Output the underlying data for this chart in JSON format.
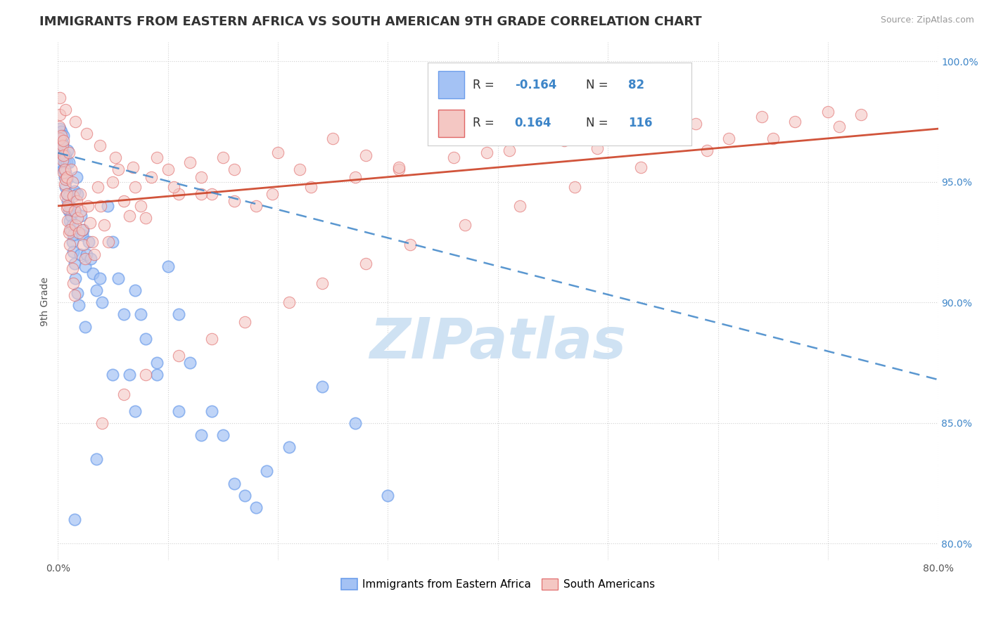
{
  "title": "IMMIGRANTS FROM EASTERN AFRICA VS SOUTH AMERICAN 9TH GRADE CORRELATION CHART",
  "source": "Source: ZipAtlas.com",
  "ylabel": "9th Grade",
  "xlim": [
    0.0,
    0.8
  ],
  "ylim": [
    0.793,
    1.008
  ],
  "xticks": [
    0.0,
    0.1,
    0.2,
    0.3,
    0.4,
    0.5,
    0.6,
    0.7,
    0.8
  ],
  "xticklabels": [
    "0.0%",
    "",
    "",
    "",
    "",
    "",
    "",
    "",
    "80.0%"
  ],
  "yticks": [
    0.8,
    0.85,
    0.9,
    0.95,
    1.0
  ],
  "yticklabels": [
    "80.0%",
    "85.0%",
    "90.0%",
    "95.0%",
    "100.0%"
  ],
  "blue_R": -0.164,
  "blue_N": 82,
  "pink_R": 0.164,
  "pink_N": 116,
  "blue_color": "#a4c2f4",
  "pink_color": "#f4c7c3",
  "blue_edge_color": "#6d9eeb",
  "pink_edge_color": "#e06666",
  "blue_line_color": "#3d85c8",
  "pink_line_color": "#cc4125",
  "watermark": "ZIPatlas",
  "watermark_color": "#cfe2f3",
  "legend_label_blue": "Immigrants from Eastern Africa",
  "legend_label_pink": "South Americans",
  "title_fontsize": 13,
  "axis_label_fontsize": 10,
  "tick_fontsize": 10,
  "legend_fontsize": 11,
  "blue_trend_x0": 0.0,
  "blue_trend_x1": 0.8,
  "blue_trend_y0": 0.962,
  "blue_trend_y1": 0.868,
  "pink_trend_x0": 0.0,
  "pink_trend_x1": 0.8,
  "pink_trend_y0": 0.94,
  "pink_trend_y1": 0.972,
  "blue_scatter_x": [
    0.001,
    0.002,
    0.002,
    0.003,
    0.003,
    0.003,
    0.004,
    0.004,
    0.005,
    0.005,
    0.005,
    0.006,
    0.006,
    0.007,
    0.007,
    0.007,
    0.008,
    0.008,
    0.008,
    0.009,
    0.009,
    0.01,
    0.01,
    0.01,
    0.011,
    0.011,
    0.012,
    0.012,
    0.013,
    0.013,
    0.014,
    0.014,
    0.015,
    0.015,
    0.016,
    0.016,
    0.017,
    0.018,
    0.018,
    0.019,
    0.02,
    0.021,
    0.022,
    0.023,
    0.025,
    0.026,
    0.028,
    0.03,
    0.032,
    0.035,
    0.038,
    0.04,
    0.045,
    0.05,
    0.055,
    0.06,
    0.065,
    0.07,
    0.075,
    0.08,
    0.09,
    0.1,
    0.11,
    0.12,
    0.14,
    0.15,
    0.17,
    0.19,
    0.21,
    0.24,
    0.27,
    0.3,
    0.09,
    0.11,
    0.13,
    0.16,
    0.18,
    0.05,
    0.07,
    0.035,
    0.025,
    0.015
  ],
  "blue_scatter_y": [
    0.968,
    0.963,
    0.972,
    0.958,
    0.965,
    0.971,
    0.96,
    0.966,
    0.955,
    0.962,
    0.969,
    0.952,
    0.958,
    0.948,
    0.954,
    0.961,
    0.945,
    0.951,
    0.958,
    0.942,
    0.963,
    0.938,
    0.944,
    0.958,
    0.934,
    0.94,
    0.93,
    0.936,
    0.925,
    0.932,
    0.921,
    0.928,
    0.916,
    0.946,
    0.91,
    0.938,
    0.952,
    0.904,
    0.945,
    0.899,
    0.92,
    0.936,
    0.928,
    0.93,
    0.915,
    0.92,
    0.925,
    0.918,
    0.912,
    0.905,
    0.91,
    0.9,
    0.94,
    0.925,
    0.91,
    0.895,
    0.87,
    0.905,
    0.895,
    0.885,
    0.875,
    0.915,
    0.895,
    0.875,
    0.855,
    0.845,
    0.82,
    0.83,
    0.84,
    0.865,
    0.85,
    0.82,
    0.87,
    0.855,
    0.845,
    0.825,
    0.815,
    0.87,
    0.855,
    0.835,
    0.89,
    0.81
  ],
  "pink_scatter_x": [
    0.001,
    0.002,
    0.002,
    0.003,
    0.003,
    0.004,
    0.004,
    0.005,
    0.005,
    0.005,
    0.006,
    0.006,
    0.007,
    0.007,
    0.008,
    0.008,
    0.008,
    0.009,
    0.009,
    0.01,
    0.01,
    0.011,
    0.011,
    0.012,
    0.012,
    0.013,
    0.013,
    0.014,
    0.014,
    0.015,
    0.015,
    0.016,
    0.017,
    0.018,
    0.019,
    0.02,
    0.021,
    0.022,
    0.023,
    0.025,
    0.027,
    0.029,
    0.031,
    0.033,
    0.036,
    0.039,
    0.042,
    0.046,
    0.05,
    0.055,
    0.06,
    0.065,
    0.07,
    0.075,
    0.08,
    0.09,
    0.1,
    0.11,
    0.12,
    0.13,
    0.14,
    0.15,
    0.16,
    0.18,
    0.2,
    0.22,
    0.25,
    0.28,
    0.31,
    0.35,
    0.39,
    0.44,
    0.49,
    0.55,
    0.61,
    0.67,
    0.73,
    0.04,
    0.06,
    0.08,
    0.11,
    0.14,
    0.17,
    0.21,
    0.24,
    0.28,
    0.32,
    0.37,
    0.42,
    0.47,
    0.53,
    0.59,
    0.65,
    0.71,
    0.0015,
    0.007,
    0.016,
    0.026,
    0.038,
    0.052,
    0.068,
    0.085,
    0.105,
    0.13,
    0.16,
    0.195,
    0.23,
    0.27,
    0.31,
    0.36,
    0.41,
    0.46,
    0.52,
    0.58,
    0.64,
    0.7
  ],
  "pink_scatter_y": [
    0.973,
    0.968,
    0.978,
    0.963,
    0.969,
    0.959,
    0.965,
    0.954,
    0.961,
    0.967,
    0.949,
    0.955,
    0.944,
    0.951,
    0.939,
    0.945,
    0.952,
    0.934,
    0.94,
    0.929,
    0.962,
    0.924,
    0.93,
    0.919,
    0.955,
    0.914,
    0.95,
    0.908,
    0.944,
    0.903,
    0.938,
    0.932,
    0.942,
    0.935,
    0.929,
    0.945,
    0.938,
    0.93,
    0.924,
    0.918,
    0.94,
    0.933,
    0.925,
    0.92,
    0.948,
    0.94,
    0.932,
    0.925,
    0.95,
    0.955,
    0.942,
    0.936,
    0.948,
    0.94,
    0.935,
    0.96,
    0.955,
    0.945,
    0.958,
    0.952,
    0.945,
    0.96,
    0.955,
    0.94,
    0.962,
    0.955,
    0.968,
    0.961,
    0.955,
    0.968,
    0.962,
    0.97,
    0.964,
    0.975,
    0.968,
    0.975,
    0.978,
    0.85,
    0.862,
    0.87,
    0.878,
    0.885,
    0.892,
    0.9,
    0.908,
    0.916,
    0.924,
    0.932,
    0.94,
    0.948,
    0.956,
    0.963,
    0.968,
    0.973,
    0.985,
    0.98,
    0.975,
    0.97,
    0.965,
    0.96,
    0.956,
    0.952,
    0.948,
    0.945,
    0.942,
    0.945,
    0.948,
    0.952,
    0.956,
    0.96,
    0.963,
    0.967,
    0.97,
    0.974,
    0.977,
    0.979
  ]
}
